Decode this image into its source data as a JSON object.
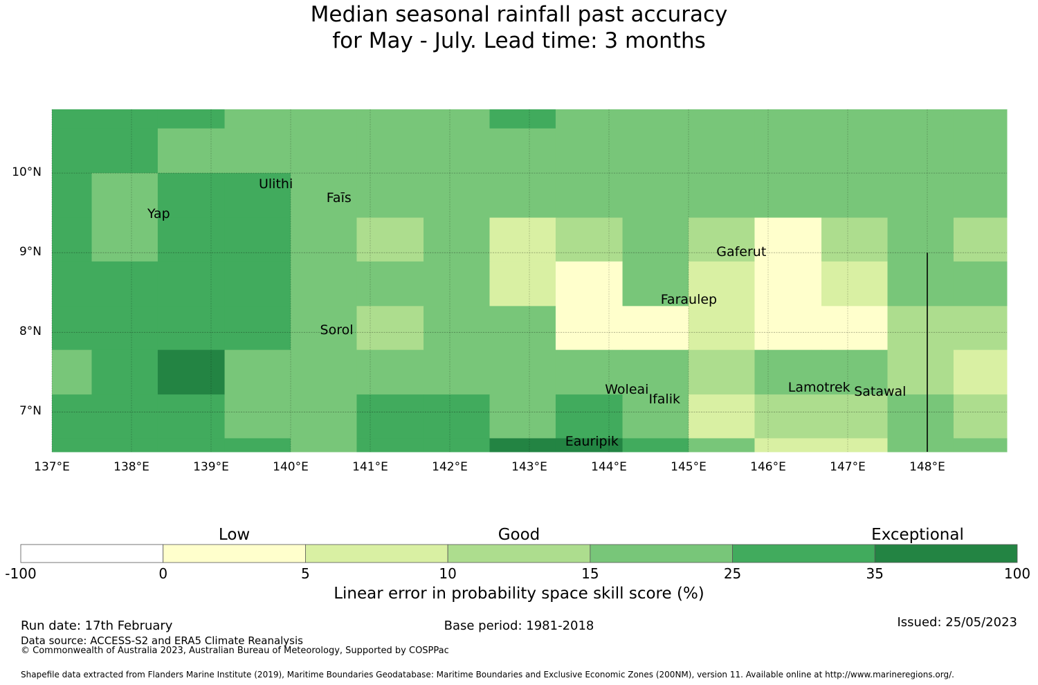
{
  "title": {
    "line1": "Median seasonal rainfall past accuracy",
    "line2": "for May - July. Lead time: 3 months"
  },
  "colors": {
    "c0": "#ffffcc",
    "c5": "#d9f0a3",
    "c10": "#addd8e",
    "c15": "#78c679",
    "c25": "#41ab5d",
    "c35": "#238443",
    "white": "#ffffff"
  },
  "axes": {
    "lat_ticks": [
      "10°N",
      "9°N",
      "8°N",
      "7°N"
    ],
    "lat_values": [
      10,
      9,
      8,
      7
    ],
    "lon_ticks": [
      "137°E",
      "138°E",
      "139°E",
      "140°E",
      "141°E",
      "142°E",
      "143°E",
      "144°E",
      "145°E",
      "146°E",
      "147°E",
      "148°E"
    ],
    "lon_values": [
      137,
      138,
      139,
      140,
      141,
      142,
      143,
      144,
      145,
      146,
      147,
      148
    ],
    "lon_range": [
      137,
      149
    ],
    "lat_range": [
      6.5,
      10.8
    ]
  },
  "grid": {
    "lon_edges": [
      137,
      137.5,
      138.33,
      139.17,
      140,
      140.83,
      141.67,
      142.5,
      143.33,
      144.17,
      145,
      145.83,
      146.67,
      147.5,
      148.33,
      149
    ],
    "lat_edges_top_to_bottom": [
      10.8,
      10.56,
      10.0,
      9.44,
      8.89,
      8.33,
      7.78,
      7.22,
      6.67,
      6.5
    ],
    "rows": [
      [
        "c25",
        "c25",
        "c25",
        "c15",
        "c15",
        "c15",
        "c15",
        "c25",
        "c15",
        "c15",
        "c15",
        "c15",
        "c15",
        "c15",
        "c15"
      ],
      [
        "c25",
        "c25",
        "c15",
        "c15",
        "c15",
        "c15",
        "c15",
        "c15",
        "c15",
        "c15",
        "c15",
        "c15",
        "c15",
        "c15",
        "c15"
      ],
      [
        "c25",
        "c15",
        "c25",
        "c25",
        "c15",
        "c15",
        "c15",
        "c15",
        "c15",
        "c15",
        "c15",
        "c15",
        "c15",
        "c15",
        "c15"
      ],
      [
        "c25",
        "c15",
        "c25",
        "c25",
        "c15",
        "c10",
        "c15",
        "c5",
        "c10",
        "c15",
        "c10",
        "c0",
        "c10",
        "c15",
        "c10"
      ],
      [
        "c25",
        "c25",
        "c25",
        "c25",
        "c15",
        "c15",
        "c15",
        "c5",
        "c0",
        "c15",
        "c5",
        "c0",
        "c5",
        "c15",
        "c15"
      ],
      [
        "c25",
        "c25",
        "c25",
        "c25",
        "c15",
        "c10",
        "c15",
        "c15",
        "c0",
        "c0",
        "c5",
        "c0",
        "c0",
        "c10",
        "c10"
      ],
      [
        "c15",
        "c25",
        "c35",
        "c15",
        "c15",
        "c15",
        "c15",
        "c15",
        "c15",
        "c15",
        "c10",
        "c15",
        "c15",
        "c10",
        "c5"
      ],
      [
        "c25",
        "c25",
        "c25",
        "c15",
        "c15",
        "c25",
        "c25",
        "c15",
        "c25",
        "c15",
        "c5",
        "c10",
        "c10",
        "c15",
        "c10"
      ],
      [
        "c25",
        "c25",
        "c25",
        "c25",
        "c15",
        "c25",
        "c25",
        "c35",
        "c35",
        "c25",
        "c15",
        "c5",
        "c5",
        "c15",
        "c15"
      ]
    ]
  },
  "vertical_line": {
    "lon": 148,
    "lat_from": 6.5,
    "lat_to": 9.0
  },
  "places": [
    {
      "name": "Ulithi",
      "lon": 139.6,
      "lat": 9.85
    },
    {
      "name": "Faīs",
      "lon": 140.45,
      "lat": 9.68
    },
    {
      "name": "Yap",
      "lon": 138.2,
      "lat": 9.48
    },
    {
      "name": "Gaferut",
      "lon": 145.35,
      "lat": 9.0
    },
    {
      "name": "Faraulep",
      "lon": 144.65,
      "lat": 8.4
    },
    {
      "name": "Sorol",
      "lon": 140.37,
      "lat": 8.02
    },
    {
      "name": "Woleai",
      "lon": 143.95,
      "lat": 7.27
    },
    {
      "name": "Ifalik",
      "lon": 144.5,
      "lat": 7.15
    },
    {
      "name": "Lamotrek",
      "lon": 146.25,
      "lat": 7.3
    },
    {
      "name": "Satawal",
      "lon": 147.08,
      "lat": 7.25
    },
    {
      "name": "Eauripik",
      "lon": 143.45,
      "lat": 6.62
    }
  ],
  "colorbar": {
    "categories": [
      "Low",
      "Good",
      "Exceptional"
    ],
    "ticks": [
      "-100",
      "0",
      "5",
      "10",
      "15",
      "25",
      "35",
      "100"
    ],
    "segments": [
      "white",
      "c0",
      "c5",
      "c10",
      "c15",
      "c25",
      "c35"
    ],
    "label": "Linear error in probability space skill score (%)"
  },
  "footer": {
    "run_date": "Run date: 17th February",
    "base_period": "Base period: 1981-2018",
    "issued": "Issued: 25/05/2023",
    "data_source": "Data source: ACCESS-S2 and ERA5 Climate Reanalysis",
    "copyright": "© Commonwealth of Australia 2023, Australian Bureau of Meteorology, Supported by COSPPac",
    "shapefile": "Shapefile data extracted from Flanders Marine Institute (2019), Maritime Boundaries Geodatabase: Maritime Boundaries and Exclusive Economic Zones (200NM), version 11. Available online at http://www.marineregions.org/."
  }
}
